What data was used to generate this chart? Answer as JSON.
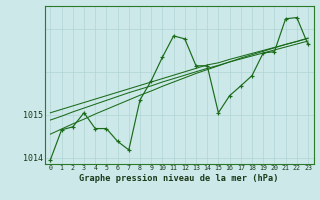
{
  "xlabel": "Graphe pression niveau de la mer (hPa)",
  "bg_color": "#cce8e8",
  "line_color": "#1a6b1a",
  "grid_color_v": "#b0d4d4",
  "grid_color_h": "#b0d4d4",
  "x_ticks": [
    0,
    1,
    2,
    3,
    4,
    5,
    6,
    7,
    8,
    9,
    10,
    11,
    12,
    13,
    14,
    15,
    16,
    17,
    18,
    19,
    20,
    21,
    22,
    23
  ],
  "ylim": [
    1013.85,
    1017.55
  ],
  "ytick_positions": [
    1014,
    1015
  ],
  "ytick_labels": [
    "1014",
    "1015"
  ],
  "main_y": [
    1013.95,
    1014.65,
    1014.72,
    1015.05,
    1014.68,
    1014.68,
    1014.38,
    1014.18,
    1015.35,
    1015.8,
    1016.35,
    1016.85,
    1016.78,
    1016.15,
    1016.15,
    1015.05,
    1015.45,
    1015.68,
    1015.92,
    1016.45,
    1016.48,
    1017.25,
    1017.28,
    1016.65
  ],
  "trend1_y": [
    1015.05,
    1015.13,
    1015.21,
    1015.29,
    1015.37,
    1015.45,
    1015.53,
    1015.61,
    1015.69,
    1015.77,
    1015.85,
    1015.93,
    1016.01,
    1016.09,
    1016.17,
    1016.22,
    1016.3,
    1016.37,
    1016.44,
    1016.51,
    1016.58,
    1016.65,
    1016.72,
    1016.8
  ],
  "trend2_y": [
    1014.88,
    1014.97,
    1015.07,
    1015.16,
    1015.25,
    1015.34,
    1015.43,
    1015.52,
    1015.6,
    1015.68,
    1015.77,
    1015.85,
    1015.93,
    1016.01,
    1016.09,
    1016.16,
    1016.24,
    1016.31,
    1016.38,
    1016.45,
    1016.52,
    1016.59,
    1016.66,
    1016.73
  ],
  "trend3_y": [
    1014.55,
    1014.67,
    1014.79,
    1014.9,
    1015.02,
    1015.13,
    1015.24,
    1015.35,
    1015.46,
    1015.56,
    1015.67,
    1015.77,
    1015.87,
    1015.97,
    1016.06,
    1016.15,
    1016.24,
    1016.33,
    1016.41,
    1016.49,
    1016.57,
    1016.65,
    1016.72,
    1016.79
  ]
}
